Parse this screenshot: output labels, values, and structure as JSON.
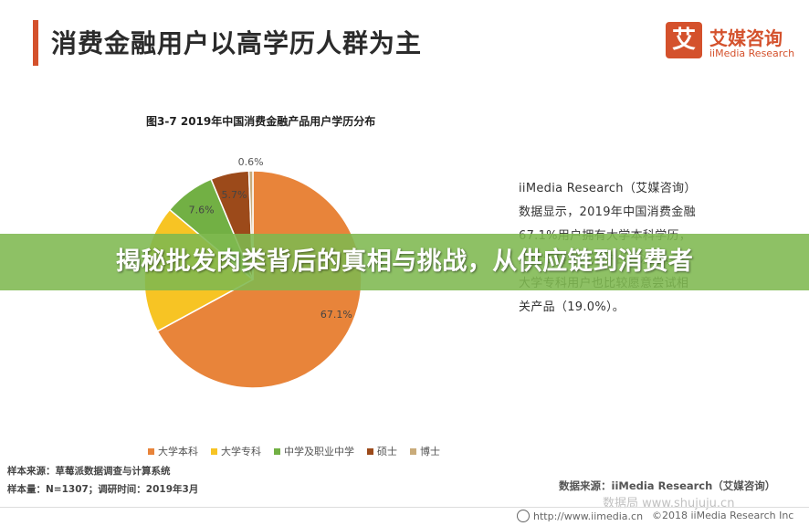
{
  "header": {
    "title": "消费金融用户以高学历人群为主",
    "logo_mark": "艾",
    "logo_cn": "艾媒咨询",
    "logo_en": "iiMedia Research"
  },
  "chart_data": {
    "type": "pie",
    "title": "图3-7 2019年中国消费金融产品用户学历分布",
    "slices": [
      {
        "label": "大学本科",
        "value": 67.1,
        "color": "#e8843a",
        "label_text": "67.1%"
      },
      {
        "label": "大学专科",
        "value": 19.0,
        "color": "#f7c424",
        "label_text": ""
      },
      {
        "label": "中学及职业中学",
        "value": 7.6,
        "color": "#72b044",
        "label_text": "7.6%"
      },
      {
        "label": "硕士",
        "value": 5.7,
        "color": "#9c4a1a",
        "label_text": "5.7%"
      },
      {
        "label": "博士",
        "value": 0.6,
        "color": "#c9ab7a",
        "label_text": "0.6%"
      }
    ],
    "legend_position": "bottom"
  },
  "description": {
    "lines": [
      "iiMedia Research（艾媒咨询）",
      "数据显示，2019年中国消费金融",
      "67.1%用户拥有大学本科学历，",
      "大学专科学历用户占比次之，",
      "大学专科用户也比较愿意尝试相",
      "关产品（19.0%）。"
    ]
  },
  "notes": {
    "sample_source": "样本来源：草莓派数据调查与计算系统",
    "sample_size": "样本量：N=1307；调研时间：2019年3月",
    "data_source": "数据来源：iiMedia Research（艾媒咨询）"
  },
  "footer": {
    "url": "http://www.iimedia.cn",
    "copyright": "©2018  iiMedia Research Inc",
    "watermark": "数据局  www.shujuju.cn"
  },
  "banner": {
    "text": "揭秘批发肉类背后的真相与挑战，从供应链到消费者"
  }
}
